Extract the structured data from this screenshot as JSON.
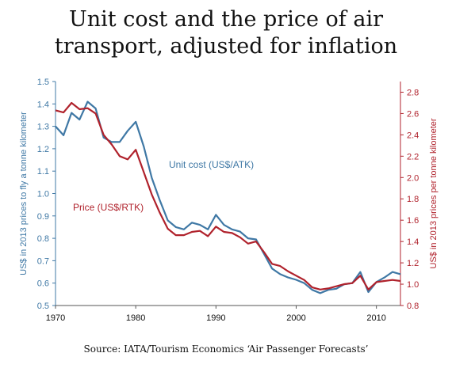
{
  "title_line1": "Unit cost and the price of air",
  "title_line2": "transport, adjusted for inflation",
  "source": "Source: IATA/Tourism Economics ‘Air Passenger Forecasts’",
  "chart_data": {
    "type": "line",
    "title": "Unit cost and the price of air transport, adjusted for inflation",
    "xlabel": "",
    "ylabel_left": "US$ in 2013 prices to fly a tonne kilometer",
    "ylabel_right": "US$ in 2013 prices per tonne kilometer",
    "xlim": [
      1970,
      2013
    ],
    "ylim_left": [
      0.5,
      1.5
    ],
    "ylim_right": [
      0.8,
      2.9
    ],
    "x_ticks": [
      1970,
      1980,
      1990,
      2000,
      2010
    ],
    "y_ticks_left": [
      0.5,
      0.6,
      0.7,
      0.8,
      0.9,
      1.0,
      1.1,
      1.2,
      1.3,
      1.4,
      1.5
    ],
    "y_ticks_right": [
      0.8,
      1.0,
      1.2,
      1.4,
      1.6,
      1.8,
      2.0,
      2.2,
      2.4,
      2.6,
      2.8
    ],
    "grid": false,
    "legend": "inline labels",
    "series": [
      {
        "name": "Unit cost (US$/ATK)",
        "axis": "left",
        "color": "#3f78a5",
        "x": [
          1970,
          1971,
          1972,
          1973,
          1974,
          1975,
          1976,
          1977,
          1978,
          1979,
          1980,
          1981,
          1982,
          1983,
          1984,
          1985,
          1986,
          1987,
          1988,
          1989,
          1990,
          1991,
          1992,
          1993,
          1994,
          1995,
          1996,
          1997,
          1998,
          1999,
          2000,
          2001,
          2002,
          2003,
          2004,
          2005,
          2006,
          2007,
          2008,
          2009,
          2010,
          2011,
          2012,
          2013
        ],
        "values": [
          1.3,
          1.26,
          1.36,
          1.33,
          1.41,
          1.38,
          1.25,
          1.23,
          1.23,
          1.28,
          1.32,
          1.21,
          1.07,
          0.97,
          0.88,
          0.85,
          0.84,
          0.87,
          0.86,
          0.84,
          0.905,
          0.86,
          0.84,
          0.83,
          0.8,
          0.795,
          0.73,
          0.665,
          0.64,
          0.625,
          0.615,
          0.6,
          0.57,
          0.555,
          0.57,
          0.575,
          0.595,
          0.6,
          0.65,
          0.56,
          0.605,
          0.625,
          0.65,
          0.64
        ]
      },
      {
        "name": "Price (US$/RTK)",
        "axis": "right",
        "color": "#b0222c",
        "x": [
          1970,
          1971,
          1972,
          1973,
          1974,
          1975,
          1976,
          1977,
          1978,
          1979,
          1980,
          1981,
          1982,
          1983,
          1984,
          1985,
          1986,
          1987,
          1988,
          1989,
          1990,
          1991,
          1992,
          1993,
          1994,
          1995,
          1996,
          1997,
          1998,
          1999,
          2000,
          2001,
          2002,
          2003,
          2004,
          2005,
          2006,
          2007,
          2008,
          2009,
          2010,
          2011,
          2012,
          2013
        ],
        "values": [
          2.63,
          2.61,
          2.7,
          2.64,
          2.65,
          2.6,
          2.4,
          2.31,
          2.2,
          2.17,
          2.26,
          2.05,
          1.84,
          1.67,
          1.52,
          1.46,
          1.46,
          1.49,
          1.5,
          1.45,
          1.54,
          1.49,
          1.48,
          1.44,
          1.38,
          1.4,
          1.3,
          1.19,
          1.17,
          1.12,
          1.08,
          1.04,
          0.97,
          0.95,
          0.96,
          0.98,
          1.0,
          1.01,
          1.08,
          0.95,
          1.02,
          1.03,
          1.04,
          1.03
        ]
      }
    ]
  }
}
